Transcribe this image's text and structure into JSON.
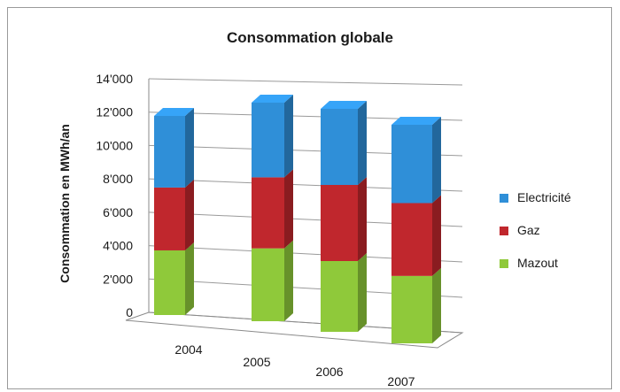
{
  "chart_data": {
    "type": "bar",
    "stacked": true,
    "three_d": true,
    "title": "Consommation globale",
    "xlabel": "",
    "ylabel": "Consommation en MWh/an",
    "categories": [
      "2004",
      "2005",
      "2006",
      "2007"
    ],
    "y_ticks": [
      "0",
      "2'000",
      "4'000",
      "6'000",
      "8'000",
      "10'000",
      "12'000",
      "14'000"
    ],
    "ylim": [
      0,
      14000
    ],
    "grid": true,
    "legend_position": "right",
    "series": [
      {
        "name": "Mazout",
        "color": "#8fc93a",
        "values": [
          3700,
          4000,
          4000,
          3700
        ]
      },
      {
        "name": "Gaz",
        "color": "#c0272d",
        "values": [
          3600,
          3900,
          4300,
          4000
        ]
      },
      {
        "name": "Electricité",
        "color": "#2f8fd8",
        "values": [
          4100,
          4100,
          4300,
          4300
        ]
      }
    ],
    "legend": [
      {
        "name": "Electricité",
        "color": "#2f8fd8"
      },
      {
        "name": "Gaz",
        "color": "#c0272d"
      },
      {
        "name": "Mazout",
        "color": "#8fc93a"
      }
    ]
  }
}
